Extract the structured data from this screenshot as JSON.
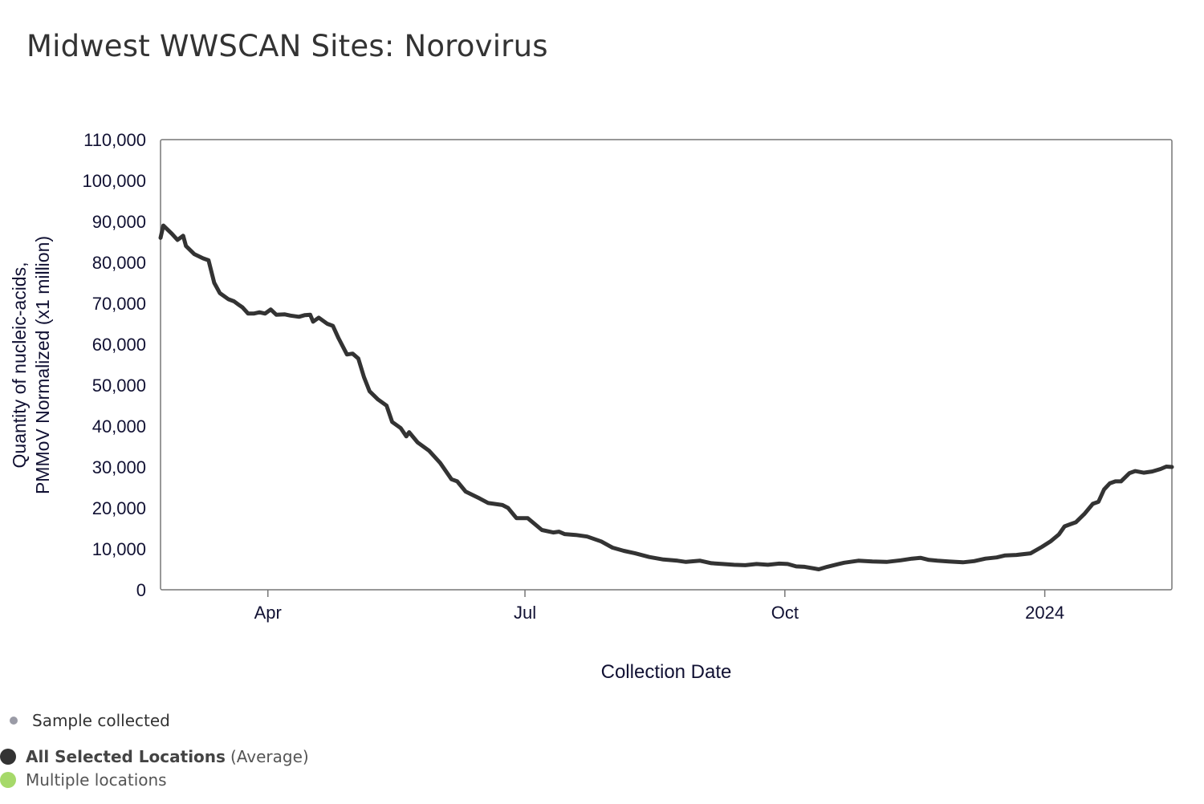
{
  "header": {
    "title": "Midwest WWSCAN Sites: Norovirus"
  },
  "legend": {
    "sample": {
      "label": "Sample collected",
      "color": "#9a9ba6",
      "icon": "small-dot-icon"
    },
    "average": {
      "label_strong": "All Selected Locations",
      "label_suffix": "(Average)",
      "color": "#333333",
      "icon": "dot-icon"
    },
    "multiple": {
      "label": "Multiple locations",
      "color": "#a6d96a",
      "icon": "dot-icon"
    }
  },
  "chart_data": {
    "type": "line",
    "title": "Midwest WWSCAN Sites: Norovirus",
    "xlabel": "Collection Date",
    "ylabel_lines": [
      "Quantity of nucleic-acids,",
      "PMMoV Normalized (x1 million)"
    ],
    "xlim": [
      "2023-02-22",
      "2024-02-15"
    ],
    "ylim": [
      0,
      110000
    ],
    "yticks": [
      0,
      10000,
      20000,
      30000,
      40000,
      50000,
      60000,
      70000,
      80000,
      90000,
      100000,
      110000
    ],
    "ytick_labels": [
      "0",
      "10,000",
      "20,000",
      "30,000",
      "40,000",
      "50,000",
      "60,000",
      "70,000",
      "80,000",
      "90,000",
      "100,000",
      "110,000"
    ],
    "xticks": [
      {
        "date": "2023-04-01",
        "label": "Apr"
      },
      {
        "date": "2023-07-01",
        "label": "Jul"
      },
      {
        "date": "2023-10-01",
        "label": "Oct"
      },
      {
        "date": "2024-01-01",
        "label": "2024"
      }
    ],
    "grid": false,
    "line_color": "#333333",
    "series": [
      {
        "name": "All Selected Locations",
        "points": [
          [
            "2023-02-22",
            86000
          ],
          [
            "2023-02-23",
            89000
          ],
          [
            "2023-02-26",
            87000
          ],
          [
            "2023-02-28",
            85500
          ],
          [
            "2023-03-02",
            86500
          ],
          [
            "2023-03-03",
            84000
          ],
          [
            "2023-03-06",
            82000
          ],
          [
            "2023-03-09",
            81000
          ],
          [
            "2023-03-11",
            80500
          ],
          [
            "2023-03-13",
            75000
          ],
          [
            "2023-03-15",
            72500
          ],
          [
            "2023-03-18",
            71000
          ],
          [
            "2023-03-20",
            70500
          ],
          [
            "2023-03-22",
            69500
          ],
          [
            "2023-03-23",
            69000
          ],
          [
            "2023-03-25",
            67500
          ],
          [
            "2023-03-27",
            67500
          ],
          [
            "2023-03-29",
            67800
          ],
          [
            "2023-03-31",
            67500
          ],
          [
            "2023-04-02",
            68500
          ],
          [
            "2023-04-04",
            67200
          ],
          [
            "2023-04-07",
            67300
          ],
          [
            "2023-04-09",
            67000
          ],
          [
            "2023-04-12",
            66700
          ],
          [
            "2023-04-14",
            67100
          ],
          [
            "2023-04-16",
            67200
          ],
          [
            "2023-04-17",
            65500
          ],
          [
            "2023-04-19",
            66500
          ],
          [
            "2023-04-22",
            65000
          ],
          [
            "2023-04-24",
            64500
          ],
          [
            "2023-04-26",
            61500
          ],
          [
            "2023-04-29",
            57500
          ],
          [
            "2023-05-01",
            57700
          ],
          [
            "2023-05-03",
            56500
          ],
          [
            "2023-05-05",
            52000
          ],
          [
            "2023-05-07",
            48500
          ],
          [
            "2023-05-10",
            46500
          ],
          [
            "2023-05-13",
            45000
          ],
          [
            "2023-05-15",
            41000
          ],
          [
            "2023-05-18",
            39500
          ],
          [
            "2023-05-20",
            37500
          ],
          [
            "2023-05-21",
            38500
          ],
          [
            "2023-05-24",
            36000
          ],
          [
            "2023-05-28",
            34000
          ],
          [
            "2023-06-01",
            31000
          ],
          [
            "2023-06-05",
            27000
          ],
          [
            "2023-06-07",
            26500
          ],
          [
            "2023-06-10",
            24000
          ],
          [
            "2023-06-15",
            22300
          ],
          [
            "2023-06-18",
            21200
          ],
          [
            "2023-06-23",
            20700
          ],
          [
            "2023-06-25",
            20000
          ],
          [
            "2023-06-28",
            17500
          ],
          [
            "2023-07-02",
            17500
          ],
          [
            "2023-07-07",
            14600
          ],
          [
            "2023-07-11",
            14000
          ],
          [
            "2023-07-13",
            14200
          ],
          [
            "2023-07-15",
            13600
          ],
          [
            "2023-07-19",
            13400
          ],
          [
            "2023-07-23",
            13000
          ],
          [
            "2023-07-28",
            11800
          ],
          [
            "2023-08-01",
            10300
          ],
          [
            "2023-08-05",
            9500
          ],
          [
            "2023-08-09",
            8900
          ],
          [
            "2023-08-14",
            8000
          ],
          [
            "2023-08-19",
            7400
          ],
          [
            "2023-08-24",
            7100
          ],
          [
            "2023-08-27",
            6800
          ],
          [
            "2023-09-01",
            7100
          ],
          [
            "2023-09-05",
            6500
          ],
          [
            "2023-09-09",
            6300
          ],
          [
            "2023-09-13",
            6100
          ],
          [
            "2023-09-17",
            6000
          ],
          [
            "2023-09-21",
            6300
          ],
          [
            "2023-09-25",
            6100
          ],
          [
            "2023-09-29",
            6400
          ],
          [
            "2023-10-02",
            6300
          ],
          [
            "2023-10-05",
            5700
          ],
          [
            "2023-10-08",
            5600
          ],
          [
            "2023-10-13",
            5000
          ],
          [
            "2023-10-16",
            5600
          ],
          [
            "2023-10-20",
            6300
          ],
          [
            "2023-10-22",
            6600
          ],
          [
            "2023-10-27",
            7100
          ],
          [
            "2023-11-01",
            6900
          ],
          [
            "2023-11-06",
            6800
          ],
          [
            "2023-11-11",
            7200
          ],
          [
            "2023-11-15",
            7600
          ],
          [
            "2023-11-18",
            7800
          ],
          [
            "2023-11-21",
            7300
          ],
          [
            "2023-11-24",
            7100
          ],
          [
            "2023-11-28",
            6900
          ],
          [
            "2023-12-03",
            6700
          ],
          [
            "2023-12-07",
            7000
          ],
          [
            "2023-12-11",
            7600
          ],
          [
            "2023-12-15",
            7900
          ],
          [
            "2023-12-18",
            8400
          ],
          [
            "2023-12-22",
            8500
          ],
          [
            "2023-12-27",
            8900
          ],
          [
            "2023-12-31",
            10500
          ],
          [
            "2024-01-03",
            11800
          ],
          [
            "2024-01-06",
            13500
          ],
          [
            "2024-01-08",
            15500
          ],
          [
            "2024-01-10",
            16000
          ],
          [
            "2024-01-12",
            16500
          ],
          [
            "2024-01-15",
            18500
          ],
          [
            "2024-01-18",
            21000
          ],
          [
            "2024-01-20",
            21500
          ],
          [
            "2024-01-22",
            24500
          ],
          [
            "2024-01-24",
            26000
          ],
          [
            "2024-01-26",
            26500
          ],
          [
            "2024-01-28",
            26500
          ],
          [
            "2024-01-31",
            28500
          ],
          [
            "2024-02-02",
            29000
          ],
          [
            "2024-02-05",
            28600
          ],
          [
            "2024-02-08",
            28900
          ],
          [
            "2024-02-11",
            29500
          ],
          [
            "2024-02-13",
            30100
          ],
          [
            "2024-02-15",
            30000
          ]
        ]
      }
    ]
  }
}
